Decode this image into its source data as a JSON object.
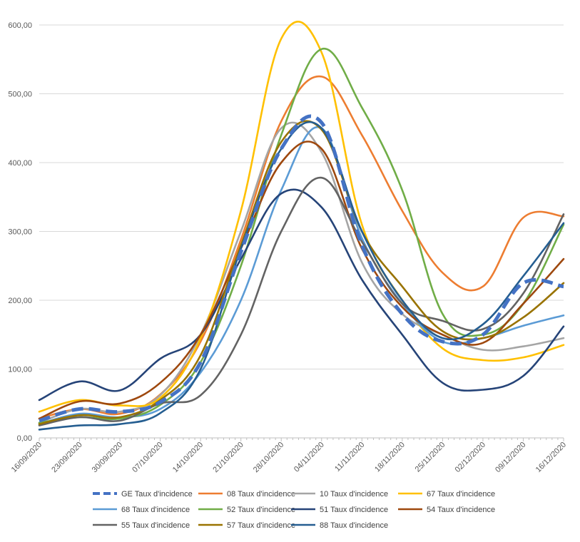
{
  "chart_data": {
    "type": "line",
    "x": [
      "16/09/2020",
      "23/09/2020",
      "30/09/2020",
      "07/10/2020",
      "14/10/2020",
      "21/10/2020",
      "28/10/2020",
      "04/11/2020",
      "11/11/2020",
      "18/11/2020",
      "25/11/2020",
      "02/12/2020",
      "09/12/2020",
      "16/12/2020"
    ],
    "x_tick_labels": [
      "16/09/2020",
      "23/09/2020",
      "30/09/2020",
      "07/10/2020",
      "14/10/2020",
      "21/10/2020",
      "28/10/2020",
      "04/11/2020",
      "11/11/2020",
      "18/11/2020",
      "25/11/2020",
      "02/12/2020",
      "09/12/2020",
      "16/12/2020"
    ],
    "y_tick_labels": [
      "0,00",
      "100,00",
      "200,00",
      "300,00",
      "400,00",
      "500,00",
      "600,00"
    ],
    "ylim": [
      0,
      600
    ],
    "grid": "horizontal",
    "legend_position": "bottom",
    "title": "",
    "xlabel": "",
    "ylabel": "",
    "series": [
      {
        "name": "GE Taux d'incidence",
        "color": "#4472C4",
        "dashed": true,
        "values": [
          25,
          42,
          38,
          52,
          110,
          270,
          420,
          458,
          280,
          180,
          140,
          150,
          225,
          220
        ]
      },
      {
        "name": "08 Taux d'incidence",
        "color": "#ED7D31",
        "dashed": false,
        "values": [
          28,
          42,
          35,
          63,
          140,
          288,
          460,
          525,
          440,
          330,
          240,
          220,
          320,
          322
        ]
      },
      {
        "name": "10 Taux d'incidence",
        "color": "#A5A5A5",
        "dashed": false,
        "values": [
          22,
          42,
          38,
          62,
          150,
          300,
          450,
          415,
          255,
          180,
          150,
          128,
          133,
          145
        ]
      },
      {
        "name": "67 Taux d'incidence",
        "color": "#FFC000",
        "dashed": false,
        "values": [
          38,
          55,
          47,
          58,
          145,
          330,
          580,
          560,
          310,
          200,
          130,
          113,
          117,
          135
        ]
      },
      {
        "name": "68 Taux d'incidence",
        "color": "#5B9BD5",
        "dashed": false,
        "values": [
          20,
          35,
          30,
          42,
          95,
          200,
          360,
          450,
          290,
          195,
          140,
          145,
          163,
          178
        ]
      },
      {
        "name": "52 Taux d'incidence",
        "color": "#70AD47",
        "dashed": false,
        "values": [
          22,
          30,
          28,
          48,
          110,
          250,
          440,
          565,
          480,
          360,
          180,
          150,
          195,
          310
        ]
      },
      {
        "name": "51 Taux d'incidence",
        "color": "#264478",
        "dashed": false,
        "values": [
          55,
          82,
          69,
          115,
          150,
          260,
          355,
          335,
          230,
          150,
          80,
          70,
          90,
          162
        ]
      },
      {
        "name": "54 Taux d'incidence",
        "color": "#9E480E",
        "dashed": false,
        "values": [
          28,
          53,
          50,
          80,
          150,
          275,
          400,
          420,
          275,
          190,
          150,
          138,
          195,
          260
        ]
      },
      {
        "name": "55 Taux d'incidence",
        "color": "#636363",
        "dashed": false,
        "values": [
          18,
          30,
          25,
          50,
          62,
          150,
          300,
          378,
          285,
          195,
          170,
          158,
          210,
          325
        ]
      },
      {
        "name": "57 Taux d'incidence",
        "color": "#997300",
        "dashed": false,
        "values": [
          20,
          33,
          30,
          55,
          120,
          280,
          430,
          448,
          300,
          220,
          155,
          145,
          175,
          225
        ]
      },
      {
        "name": "88 Taux d'incidence",
        "color": "#255E91",
        "dashed": false,
        "values": [
          12,
          18,
          20,
          36,
          100,
          275,
          420,
          450,
          300,
          200,
          145,
          165,
          235,
          312
        ]
      }
    ]
  }
}
